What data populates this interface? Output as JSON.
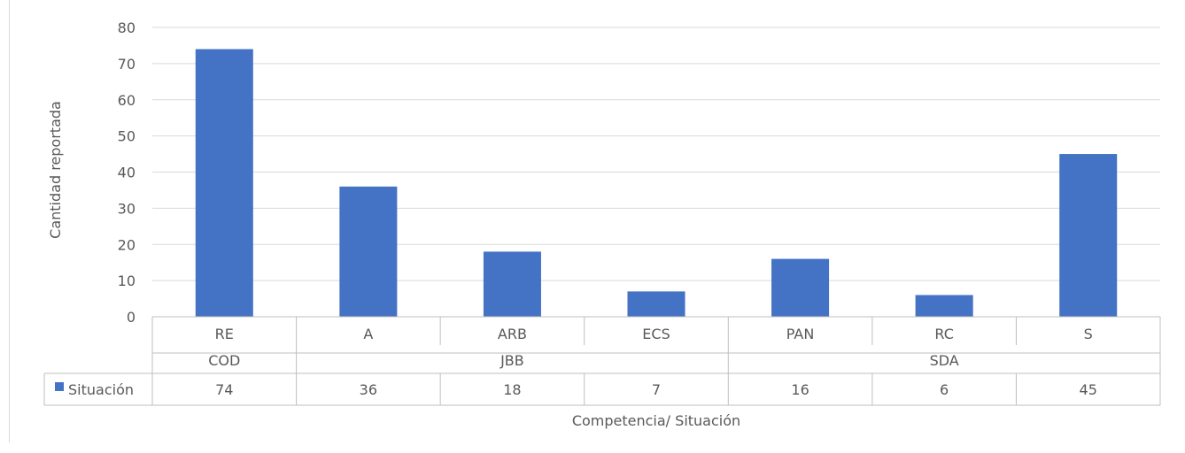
{
  "chart_data": {
    "type": "bar",
    "title": "",
    "xlabel": "Competencia/ Situación",
    "ylabel": "Cantidad reportada",
    "ylim": [
      0,
      80
    ],
    "yticks": [
      0,
      10,
      20,
      30,
      40,
      50,
      60,
      70,
      80
    ],
    "grid": true,
    "groups": [
      {
        "name": "COD",
        "categories": [
          "RE"
        ]
      },
      {
        "name": "JBB",
        "categories": [
          "A",
          "ARB",
          "ECS"
        ]
      },
      {
        "name": "SDA",
        "categories": [
          "PAN",
          "RC",
          "S"
        ]
      }
    ],
    "categories": [
      "RE",
      "A",
      "ARB",
      "ECS",
      "PAN",
      "RC",
      "S"
    ],
    "series": [
      {
        "name": "Situación",
        "color": "#4472c4",
        "values": [
          74,
          36,
          18,
          7,
          16,
          6,
          45
        ]
      }
    ],
    "legend": "data-table"
  }
}
